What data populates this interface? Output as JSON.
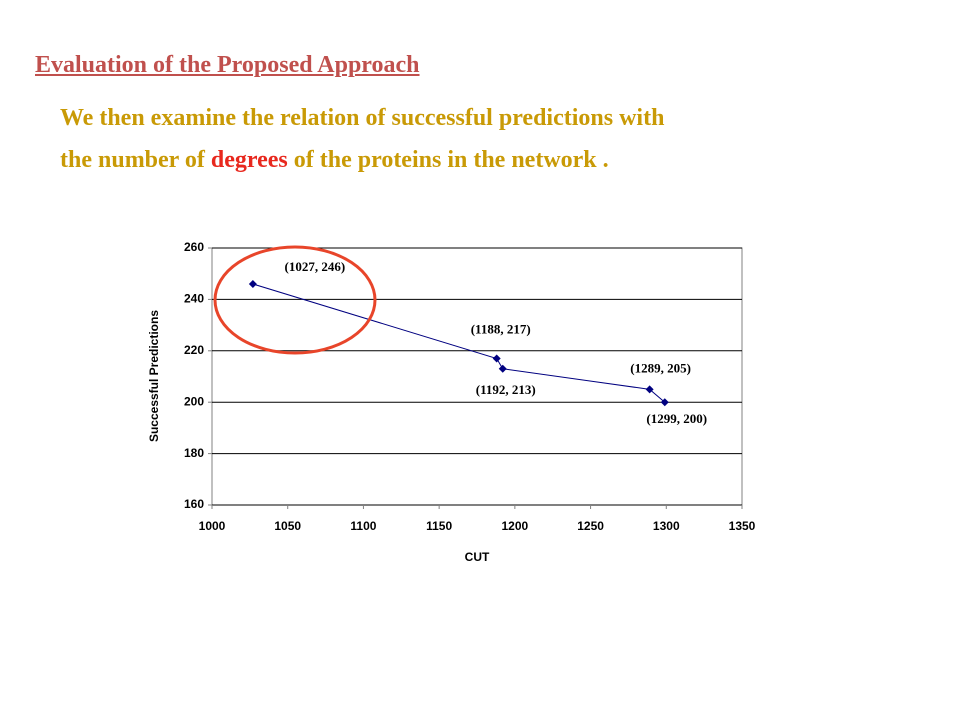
{
  "heading": "Evaluation of the Proposed Approach",
  "body": {
    "line1": "We then examine the relation of successful predictions with",
    "line2_start": "the number of",
    "highlight": "degrees",
    "line2_end": "of the proteins in the network ."
  },
  "chart_data": {
    "type": "line",
    "x": [
      1027,
      1188,
      1192,
      1289,
      1299
    ],
    "series": [
      {
        "name": "Successful Predictions",
        "color": "#000080",
        "values": [
          246,
          217,
          213,
          205,
          200
        ],
        "value_labels": [
          "(1027, 246)",
          "(1188, 217)",
          "(1192, 213)",
          "(1289, 205)",
          "(1299, 200)"
        ]
      }
    ],
    "xlim": [
      1000,
      1350
    ],
    "xticks": [
      1000,
      1050,
      1100,
      1150,
      1200,
      1250,
      1300,
      1350
    ],
    "ylim": [
      160,
      260
    ],
    "yticks": [
      160,
      180,
      200,
      220,
      240,
      260
    ],
    "xlabel": "CUT",
    "ylabel": "Successful Predictions",
    "grid": true
  }
}
